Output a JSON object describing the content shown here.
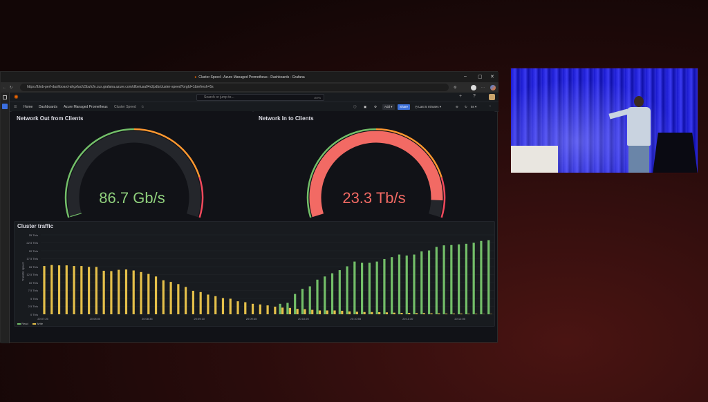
{
  "browser": {
    "tab_title": "Cluster Speed - Azure Managed Prometheus - Dashboards - Grafana",
    "url": "https://blob-perf-dashboard-ahgxfacfc5bufcfn.cus.grafana.azure.com/d/belusa04x2pdb/cluster-speed?orgId=1&refresh=5s",
    "minimize": "–",
    "maximize": "▢",
    "close": "✕"
  },
  "grafana": {
    "search_placeholder": "Search or jump to...",
    "search_shortcut": "ctrl+k",
    "breadcrumb": [
      "Home",
      "Dashboards",
      "Azure Managed Prometheus",
      "Cluster Speed"
    ],
    "toolbar": {
      "add": "Add",
      "share": "Share",
      "time_range": "Last 5 minutes",
      "refresh": "5s"
    }
  },
  "gauges": [
    {
      "title": "Network Out from Clients",
      "value_text": "86.7 Gb/s",
      "value": 0.0867,
      "max": 25,
      "thresholds": [
        {
          "at": 0,
          "color": "#73bf69"
        },
        {
          "at": 12.5,
          "color": "#ff9830"
        },
        {
          "at": 21,
          "color": "#f2495c"
        }
      ],
      "value_color": "#8fcf7c"
    },
    {
      "title": "Network In to Clients",
      "value_text": "23.3 Tb/s",
      "value": 23.3,
      "max": 25,
      "thresholds": [
        {
          "at": 0,
          "color": "#73bf69"
        },
        {
          "at": 12.5,
          "color": "#ff9830"
        },
        {
          "at": 21,
          "color": "#f2495c"
        }
      ],
      "value_color": "#f26a64"
    }
  ],
  "chart_data": {
    "type": "bar",
    "title": "Cluster traffic",
    "ylabel": "Transfer speed",
    "ylim": [
      0,
      25
    ],
    "yticks": [
      "0 Tb/s",
      "2.5 Tb/s",
      "5 Tb/s",
      "7.5 Tb/s",
      "10 Tb/s",
      "12.5 Tb/s",
      "15 Tb/s",
      "17.5 Tb/s",
      "20 Tb/s",
      "22.5 Tb/s",
      "25 Tb/s"
    ],
    "xticks": [
      "20:07:25",
      "20:08:00",
      "20:08:35",
      "20:09:10",
      "20:09:45",
      "20:10:20",
      "20:10:55",
      "20:11:30",
      "20:12:05"
    ],
    "legend_position": "bottom-left",
    "grid": true,
    "x": [
      "20:07:25",
      "20:07:30",
      "20:07:35",
      "20:07:40",
      "20:07:45",
      "20:07:50",
      "20:07:55",
      "20:08:00",
      "20:08:05",
      "20:08:10",
      "20:08:15",
      "20:08:20",
      "20:08:25",
      "20:08:30",
      "20:08:35",
      "20:08:40",
      "20:08:45",
      "20:08:50",
      "20:08:55",
      "20:09:00",
      "20:09:05",
      "20:09:10",
      "20:09:15",
      "20:09:20",
      "20:09:25",
      "20:09:30",
      "20:09:35",
      "20:09:40",
      "20:09:45",
      "20:09:50",
      "20:09:55",
      "20:10:00",
      "20:10:05",
      "20:10:10",
      "20:10:15",
      "20:10:20",
      "20:10:25",
      "20:10:30",
      "20:10:35",
      "20:10:40",
      "20:10:45",
      "20:10:50",
      "20:10:55",
      "20:11:00",
      "20:11:05",
      "20:11:10",
      "20:11:15",
      "20:11:20",
      "20:11:25",
      "20:11:30",
      "20:11:35",
      "20:11:40",
      "20:11:45",
      "20:11:50",
      "20:11:55",
      "20:12:00",
      "20:12:05",
      "20:12:10",
      "20:12:15",
      "20:12:20",
      "20:12:25"
    ],
    "series": [
      {
        "name": "Read",
        "color": "#73bf69",
        "values": [
          0,
          0,
          0,
          0,
          0,
          0,
          0,
          0,
          0,
          0,
          0,
          0,
          0,
          0,
          0,
          0,
          0,
          0,
          0,
          0,
          0,
          0,
          0,
          0,
          0,
          0,
          0,
          0,
          0,
          0,
          0,
          0,
          3.3,
          3.6,
          6.4,
          8.0,
          8.8,
          10.9,
          11.9,
          12.9,
          13.9,
          15.1,
          16.6,
          16.2,
          16.2,
          16.6,
          17.4,
          18.0,
          18.8,
          18.5,
          18.8,
          19.8,
          20.1,
          21.2,
          21.7,
          21.8,
          22.0,
          22.2,
          22.5,
          23.1,
          23.3
        ]
      },
      {
        "name": "Write",
        "color": "#e5c04a",
        "values": [
          15.2,
          15.5,
          15.4,
          15.4,
          15.2,
          15.2,
          14.9,
          14.9,
          13.7,
          13.6,
          14.0,
          14.1,
          13.8,
          13.3,
          12.7,
          11.9,
          10.7,
          10.2,
          9.5,
          8.6,
          7.4,
          7.0,
          6.2,
          5.7,
          5.1,
          4.9,
          4.1,
          3.8,
          3.3,
          3.1,
          2.8,
          2.4,
          2.1,
          2.0,
          1.7,
          1.6,
          1.4,
          1.2,
          1.2,
          1.2,
          1.1,
          0.9,
          0.8,
          0.7,
          0.7,
          0.65,
          0.6,
          0.5,
          0.43,
          0.43,
          0.36,
          0.36,
          0.29,
          0.29,
          0.22,
          0.22,
          0.22,
          0.15,
          0.15,
          0.09,
          0.0867
        ]
      }
    ]
  }
}
